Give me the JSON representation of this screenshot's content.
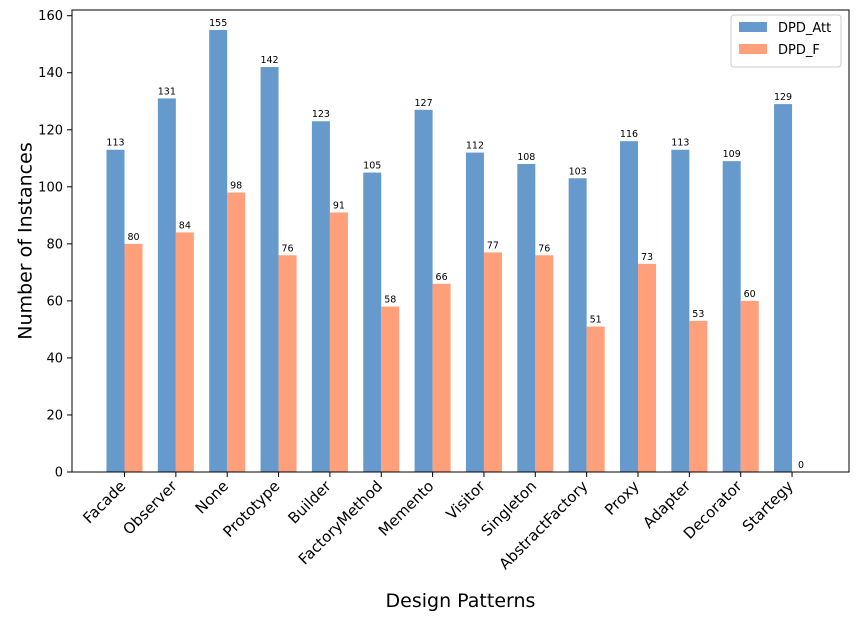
{
  "chart_data": {
    "type": "bar",
    "title": "",
    "xlabel": "Design Patterns",
    "ylabel": "Number of Instances",
    "categories": [
      "Facade",
      "Observer",
      "None",
      "Prototype",
      "Builder",
      "FactoryMethod",
      "Memento",
      "Visitor",
      "Singleton",
      "AbstractFactory",
      "Proxy",
      "Adapter",
      "Decorator",
      "Startegy"
    ],
    "series": [
      {
        "name": "DPD_Att",
        "color": "#6699cc",
        "values": [
          113,
          131,
          155,
          142,
          123,
          105,
          127,
          112,
          108,
          103,
          116,
          113,
          109,
          129
        ]
      },
      {
        "name": "DPD_F",
        "color": "#ffa07a",
        "values": [
          80,
          84,
          98,
          76,
          91,
          58,
          66,
          77,
          76,
          51,
          73,
          53,
          60,
          0
        ]
      }
    ],
    "ylim": [
      0,
      162
    ],
    "yticks": [
      0,
      20,
      40,
      60,
      80,
      100,
      120,
      140,
      160
    ],
    "grid": false,
    "legend_position": "top-right"
  }
}
